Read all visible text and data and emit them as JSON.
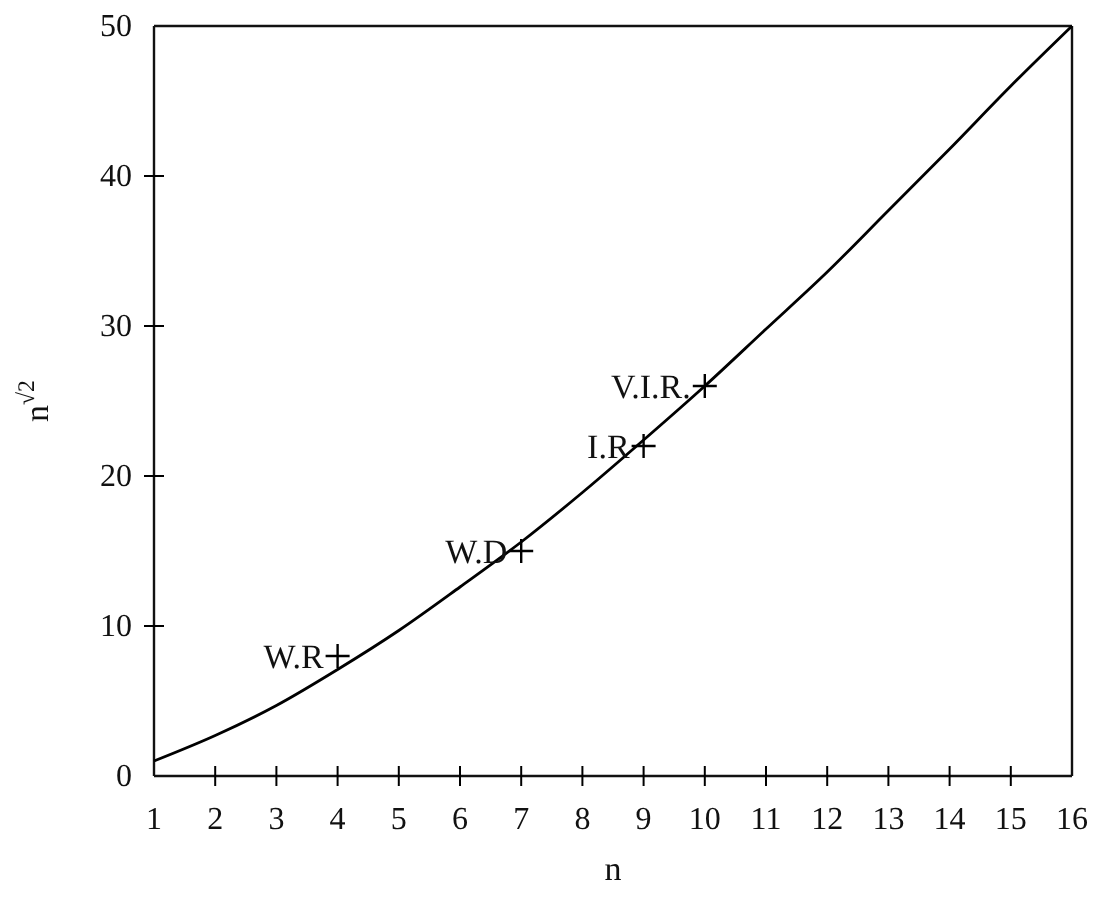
{
  "chart_data": {
    "type": "line",
    "xlabel": "n",
    "ylabel": "n$^{√2}$",
    "xlim": [
      1,
      16
    ],
    "ylim": [
      0,
      50
    ],
    "xticks": [
      1,
      2,
      3,
      4,
      5,
      6,
      7,
      8,
      9,
      10,
      11,
      12,
      13,
      14,
      15,
      16
    ],
    "yticks": [
      0,
      10,
      20,
      30,
      40,
      50
    ],
    "series": [
      {
        "color": "#000000",
        "x": [
          1,
          2,
          3,
          4,
          5,
          6,
          7,
          8,
          9,
          10,
          11,
          12,
          13,
          14,
          15,
          16
        ],
        "values": [
          1,
          2.7,
          4.7,
          7.1,
          9.7,
          12.6,
          15.6,
          18.9,
          22.4,
          26.0,
          29.8,
          33.6,
          37.7,
          41.8,
          46.0,
          50
        ]
      },
      {
        "type": "scatter",
        "marker": "cross",
        "color": "#000000",
        "x": [
          4,
          7,
          9,
          10
        ],
        "values": [
          8,
          15,
          22,
          26
        ]
      }
    ],
    "annotations": [
      {
        "text": "W.R",
        "x": 4,
        "y": 8
      },
      {
        "text": "W.D",
        "x": 7,
        "y": 15
      },
      {
        "text": "I.R",
        "x": 9,
        "y": 22
      },
      {
        "text": "V.I.R.",
        "x": 10,
        "y": 26
      }
    ]
  }
}
